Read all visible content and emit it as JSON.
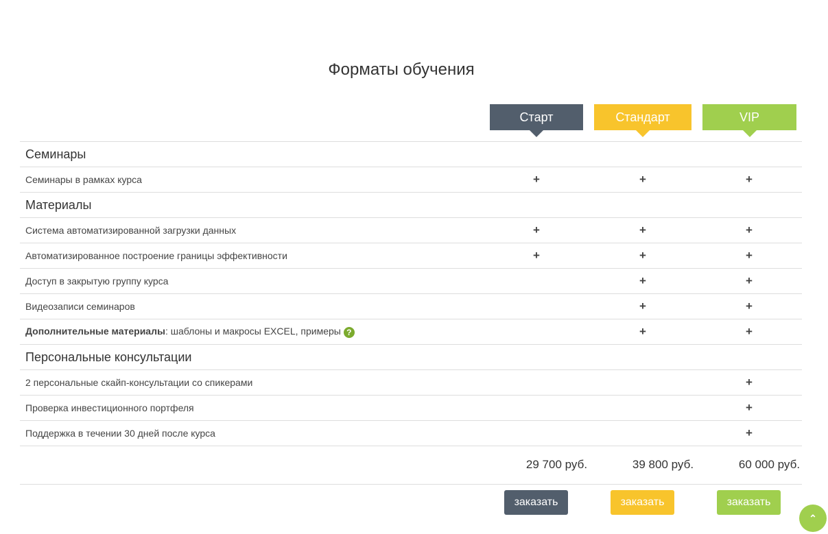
{
  "title": "Форматы обучения",
  "plans": [
    {
      "name": "Старт",
      "color": "#525e6c",
      "price": "29 700 руб.",
      "order_label": "заказать"
    },
    {
      "name": "Стандарт",
      "color": "#f8c42c",
      "price": "39 800 руб.",
      "order_label": "заказать"
    },
    {
      "name": "VIP",
      "color": "#a0cf4e",
      "price": "60 000 руб.",
      "order_label": "заказать"
    }
  ],
  "rows": [
    {
      "type": "section",
      "label": "Семинары"
    },
    {
      "type": "feature",
      "label": "Семинары в рамках курса",
      "marks": [
        true,
        true,
        true
      ]
    },
    {
      "type": "section",
      "label": "Материалы"
    },
    {
      "type": "feature",
      "label": "Система автоматизированной загрузки данных",
      "marks": [
        true,
        true,
        true
      ]
    },
    {
      "type": "feature",
      "label": "Автоматизированное построение границы эффективности",
      "marks": [
        true,
        true,
        true
      ]
    },
    {
      "type": "feature",
      "label": "Доступ в закрытую группу курса",
      "marks": [
        false,
        true,
        true
      ]
    },
    {
      "type": "feature",
      "label": "Видеозаписи семинаров",
      "marks": [
        false,
        true,
        true
      ]
    },
    {
      "type": "feature",
      "label_bold": "Дополнительные материалы",
      "label": ": шаблоны и макросы EXCEL, примеры",
      "help": "?",
      "marks": [
        false,
        true,
        true
      ]
    },
    {
      "type": "section",
      "label": "Персональные консультации"
    },
    {
      "type": "feature",
      "label": "2 персональные скайп-консультации со спикерами",
      "marks": [
        false,
        false,
        true
      ]
    },
    {
      "type": "feature",
      "label": "Проверка инвестиционного портфеля",
      "marks": [
        false,
        false,
        true
      ]
    },
    {
      "type": "feature",
      "label": "Поддержка в течении 30 дней после курса",
      "marks": [
        false,
        false,
        true
      ]
    }
  ],
  "mark_symbol": "+",
  "scroll_top_icon": "chevron-up-icon"
}
